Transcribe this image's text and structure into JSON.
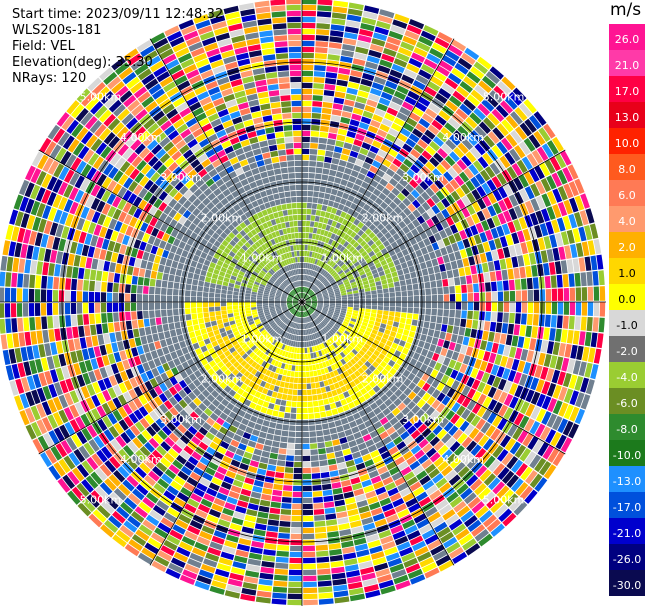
{
  "header": {
    "start_time": "Start time: 2023/09/11 12:48:32",
    "instrument": "WLS200s-181",
    "field": "Field: VEL",
    "elevation": "Elevation(deg): 35.30",
    "nrays": "NRays: 120"
  },
  "colorbar": {
    "unit": "m/s",
    "ticks": [
      "26.0",
      "21.0",
      "17.0",
      "13.0",
      "10.0",
      "8.0",
      "6.0",
      "4.0",
      "2.0",
      "1.0",
      "0.0",
      "-1.0",
      "-2.0",
      "-4.0",
      "-6.0",
      "-8.0",
      "-10.0",
      "-13.0",
      "-17.0",
      "-21.0",
      "-26.0",
      "-30.0"
    ],
    "colors": [
      "#ff1493",
      "#ff3aa8",
      "#ff0044",
      "#e8001a",
      "#ff2200",
      "#ff5a1e",
      "#ff7a55",
      "#ff9a6e",
      "#ffb000",
      "#ffd700",
      "#ffff00",
      "#d8d8d8",
      "#707070",
      "#9acd32",
      "#6b8e23",
      "#2e8b2e",
      "#1c7a1c",
      "#1e90ff",
      "#0050dc",
      "#0000cd",
      "#000080",
      "#0a0a50"
    ]
  },
  "chart_data": {
    "type": "heatmap",
    "projection": "polar PPI",
    "field": "VEL",
    "units": "m/s",
    "nrays": 120,
    "range_ring_labels": [
      "1.00km",
      "2.00km",
      "3.00km",
      "4.00km",
      "5.00km"
    ],
    "ring_label_text": "2.00km",
    "color_range": [
      -30,
      26
    ]
  }
}
